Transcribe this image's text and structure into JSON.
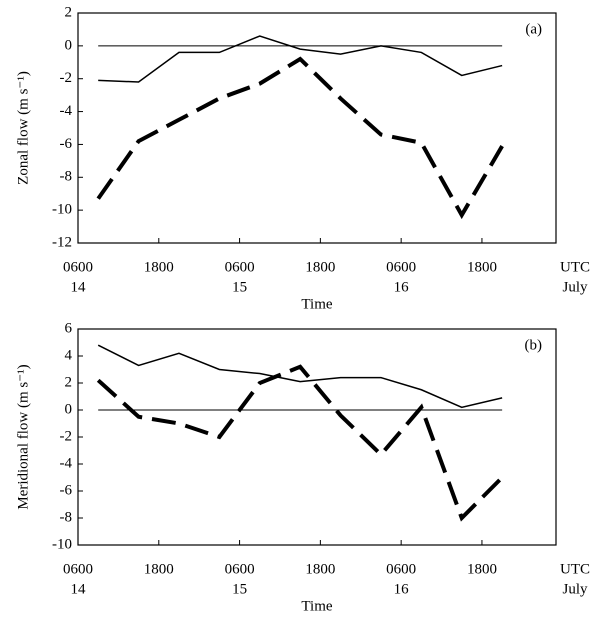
{
  "chart_data": [
    {
      "type": "line",
      "panel_label": "(a)",
      "ylabel": "Zonal flow (m s⁻¹)",
      "xlabel": "Time",
      "x": [
        9,
        15,
        21,
        27,
        33,
        39,
        45,
        51,
        57,
        63,
        69
      ],
      "xlim": [
        6,
        77
      ],
      "xticks": [
        {
          "value": 6,
          "label": "0600"
        },
        {
          "value": 18,
          "label": "1800"
        },
        {
          "value": 30,
          "label": "0600"
        },
        {
          "value": 42,
          "label": "1800"
        },
        {
          "value": 54,
          "label": "0600"
        },
        {
          "value": 66,
          "label": "1800"
        }
      ],
      "x_day_labels": [
        {
          "value": 6,
          "label": "14"
        },
        {
          "value": 30,
          "label": "15"
        },
        {
          "value": 54,
          "label": "16"
        }
      ],
      "x_unit_labels": [
        "UTC",
        "July"
      ],
      "ylim": [
        -12,
        2
      ],
      "yticks": [
        -12,
        -10,
        -8,
        -6,
        -4,
        -2,
        0,
        2
      ],
      "hline": 0,
      "series": [
        {
          "color": "#000000",
          "dashed": false,
          "values": [
            -2.1,
            -2.2,
            -0.4,
            -0.4,
            0.6,
            -0.2,
            -0.5,
            0.0,
            -0.4,
            -1.8,
            -1.2
          ]
        },
        {
          "color": "#000000",
          "dashed": true,
          "values": [
            -9.3,
            -5.8,
            -4.5,
            -3.2,
            -2.3,
            -0.8,
            -3.2,
            -5.4,
            -5.9,
            -10.3,
            -6.1
          ]
        }
      ]
    },
    {
      "type": "line",
      "panel_label": "(b)",
      "ylabel": "Meridional flow (m s⁻¹)",
      "xlabel": "Time",
      "x": [
        9,
        15,
        21,
        27,
        33,
        39,
        45,
        51,
        57,
        63,
        69
      ],
      "xlim": [
        6,
        77
      ],
      "xticks": [
        {
          "value": 6,
          "label": "0600"
        },
        {
          "value": 18,
          "label": "1800"
        },
        {
          "value": 30,
          "label": "0600"
        },
        {
          "value": 42,
          "label": "1800"
        },
        {
          "value": 54,
          "label": "0600"
        },
        {
          "value": 66,
          "label": "1800"
        }
      ],
      "x_day_labels": [
        {
          "value": 6,
          "label": "14"
        },
        {
          "value": 30,
          "label": "15"
        },
        {
          "value": 54,
          "label": "16"
        }
      ],
      "x_unit_labels": [
        "UTC",
        "July"
      ],
      "ylim": [
        -10,
        6
      ],
      "yticks": [
        -10,
        -8,
        -6,
        -4,
        -2,
        0,
        2,
        4,
        6
      ],
      "hline": 0,
      "series": [
        {
          "color": "#000000",
          "dashed": false,
          "values": [
            4.8,
            3.3,
            4.2,
            3.0,
            2.7,
            2.1,
            2.4,
            2.4,
            1.5,
            0.2,
            0.9
          ]
        },
        {
          "color": "#000000",
          "dashed": true,
          "values": [
            2.2,
            -0.5,
            -1.0,
            -2.0,
            2.0,
            3.2,
            -0.4,
            -3.3,
            0.2,
            -8.0,
            -5.0
          ]
        }
      ]
    }
  ]
}
